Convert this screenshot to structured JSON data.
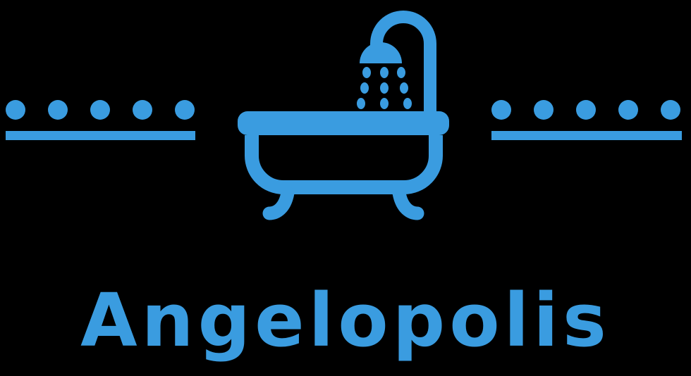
{
  "brand": {
    "name": "Angelopolis",
    "color": "#3a9ce0"
  },
  "background": "#000000",
  "icons": {
    "main": "bathtub-shower-icon",
    "decoration": "dots-divider-icon"
  }
}
